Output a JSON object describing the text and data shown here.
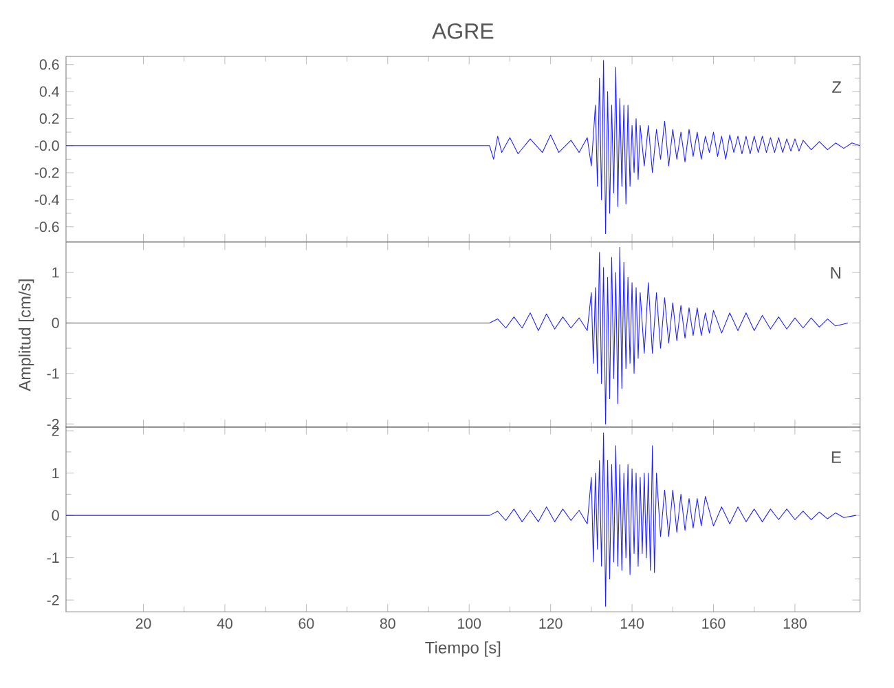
{
  "chart_data": [
    {
      "type": "line",
      "title": "AGRE",
      "annotations": [
        "Z"
      ],
      "tick_labels": "y",
      "grid": false,
      "xlim": [
        1,
        196
      ],
      "ylim": [
        -0.71,
        0.66
      ],
      "yticks": [
        {
          "value": -0.6,
          "label": "-0.6"
        },
        {
          "value": -0.4,
          "label": "-0.4"
        },
        {
          "value": -0.2,
          "label": "-0.2"
        },
        {
          "value": 0,
          "label": "-0.0"
        },
        {
          "value": 0.2,
          "label": "0.2"
        },
        {
          "value": 0.4,
          "label": "0.4"
        },
        {
          "value": 0.6,
          "label": "0.6"
        }
      ],
      "xticks": [
        20,
        40,
        60,
        80,
        100,
        120,
        140,
        160,
        180
      ],
      "series": [
        {
          "color": "#2020ff",
          "x": [
            1,
            60,
            105,
            106,
            107,
            108,
            110,
            112,
            115,
            118,
            120,
            122,
            125,
            127,
            129,
            130,
            131,
            131.5,
            132,
            132.5,
            133,
            133.5,
            134,
            134.5,
            135,
            135.5,
            136,
            136.5,
            137,
            137.5,
            138,
            138.5,
            139,
            139.5,
            140,
            140.5,
            141,
            141.5,
            142,
            143,
            144,
            145,
            146,
            147,
            148,
            149,
            150,
            151,
            152,
            153,
            154,
            155,
            156,
            157,
            158,
            159,
            160,
            161,
            162,
            163,
            164,
            165,
            166,
            167,
            168,
            169,
            170,
            171,
            172,
            173,
            174,
            175,
            176,
            177,
            178,
            179,
            180,
            181,
            182,
            184,
            186,
            188,
            190,
            192,
            194,
            196
          ],
          "values": [
            0,
            0,
            0,
            -0.1,
            0.07,
            -0.05,
            0.06,
            -0.06,
            0.05,
            -0.05,
            0.08,
            -0.05,
            0.04,
            -0.05,
            0.06,
            -0.15,
            0.3,
            -0.3,
            0.5,
            -0.4,
            0.63,
            -0.65,
            0.4,
            -0.5,
            0.3,
            -0.35,
            0.58,
            -0.45,
            0.35,
            -0.3,
            0.3,
            -0.43,
            0.3,
            -0.3,
            0.15,
            -0.2,
            0.2,
            -0.25,
            0.15,
            -0.15,
            0.15,
            -0.2,
            0.12,
            -0.1,
            0.18,
            -0.15,
            0.12,
            -0.1,
            0.1,
            -0.12,
            0.12,
            -0.08,
            0.1,
            -0.1,
            0.07,
            -0.05,
            0.1,
            -0.08,
            0.07,
            -0.1,
            0.08,
            -0.05,
            0.07,
            -0.06,
            0.07,
            -0.06,
            0.07,
            -0.05,
            0.07,
            -0.05,
            0.06,
            -0.05,
            0.06,
            -0.05,
            0.05,
            -0.04,
            0.05,
            -0.04,
            0.04,
            -0.03,
            0.03,
            -0.03,
            0.02,
            -0.02,
            0.02,
            0
          ]
        }
      ]
    },
    {
      "type": "line",
      "ylabel": "Amplitud [cm/s]",
      "annotations": [
        "N"
      ],
      "tick_labels": "y",
      "grid": false,
      "xlim": [
        1,
        196
      ],
      "ylim": [
        -2.07,
        1.6
      ],
      "yticks": [
        -2,
        -1,
        0,
        1
      ],
      "xticks": [
        20,
        40,
        60,
        80,
        100,
        120,
        140,
        160,
        180
      ],
      "series": [
        {
          "color": "#2020ff",
          "x": [
            1,
            60,
            105,
            107,
            109,
            111,
            113,
            115,
            117,
            119,
            121,
            123,
            125,
            127,
            129,
            130,
            130.5,
            131,
            131.5,
            132,
            132.5,
            133,
            133.5,
            134,
            134.5,
            135,
            135.5,
            136,
            136.5,
            137,
            137.5,
            138,
            138.5,
            139,
            139.5,
            140,
            140.5,
            141,
            141.5,
            142,
            143,
            144,
            145,
            146,
            147,
            148,
            149,
            150,
            151,
            152,
            153,
            154,
            155,
            156,
            157,
            158,
            159,
            160,
            162,
            164,
            166,
            168,
            170,
            172,
            174,
            176,
            178,
            180,
            182,
            184,
            186,
            188,
            190,
            193
          ],
          "values": [
            0,
            0,
            0,
            0.08,
            -0.1,
            0.12,
            -0.1,
            0.2,
            -0.15,
            0.18,
            -0.12,
            0.12,
            -0.1,
            0.1,
            -0.15,
            0.6,
            -0.8,
            0.7,
            -1.0,
            1.4,
            -1.2,
            1.1,
            -2.0,
            0.9,
            -1.5,
            1.3,
            -1.1,
            1.0,
            -1.6,
            1.5,
            -1.3,
            1.2,
            -0.9,
            0.9,
            -0.8,
            0.8,
            -1.0,
            0.7,
            -0.7,
            0.6,
            -0.6,
            0.8,
            -0.6,
            0.6,
            -0.5,
            0.5,
            -0.4,
            0.4,
            -0.35,
            0.35,
            -0.3,
            0.3,
            -0.25,
            0.3,
            -0.25,
            0.2,
            -0.2,
            0.25,
            -0.2,
            0.2,
            -0.15,
            0.2,
            -0.15,
            0.15,
            -0.12,
            0.12,
            -0.12,
            0.1,
            -0.1,
            0.1,
            -0.08,
            0.08,
            -0.06,
            0
          ]
        }
      ]
    },
    {
      "type": "line",
      "xlabel": "Tiempo [s]",
      "annotations": [
        "E"
      ],
      "grid": false,
      "xlim": [
        1,
        196
      ],
      "ylim": [
        -2.28,
        2.1
      ],
      "yticks": [
        -2,
        -1,
        0,
        1,
        2
      ],
      "xticks": [
        20,
        40,
        60,
        80,
        100,
        120,
        140,
        160,
        180
      ],
      "series": [
        {
          "color": "#2020ff",
          "x": [
            1,
            60,
            105,
            107,
            109,
            111,
            113,
            115,
            117,
            119,
            121,
            123,
            125,
            127,
            129,
            130,
            130.5,
            131,
            131.5,
            132,
            132.5,
            133,
            133.5,
            134,
            134.5,
            135,
            135.5,
            136,
            136.5,
            137,
            137.5,
            138,
            138.5,
            139,
            139.5,
            140,
            140.5,
            141,
            141.5,
            142,
            142.5,
            143,
            143.5,
            144,
            144.5,
            145,
            145.5,
            146,
            147,
            148,
            149,
            150,
            151,
            152,
            153,
            154,
            155,
            156,
            157,
            158,
            160,
            162,
            164,
            166,
            168,
            170,
            172,
            174,
            176,
            178,
            180,
            182,
            184,
            186,
            188,
            190,
            192,
            195
          ],
          "values": [
            0,
            0,
            0,
            0.1,
            -0.12,
            0.15,
            -0.15,
            0.12,
            -0.15,
            0.2,
            -0.15,
            0.15,
            -0.12,
            0.12,
            -0.2,
            0.9,
            -1.1,
            1.0,
            -0.8,
            1.3,
            -1.2,
            1.95,
            -2.15,
            1.3,
            -1.5,
            1.2,
            -1.1,
            1.65,
            -1.2,
            1.2,
            -1.3,
            1.0,
            -1.0,
            1.2,
            -1.4,
            1.1,
            -0.9,
            1.0,
            -1.2,
            0.9,
            -0.9,
            1.0,
            -1.0,
            1.0,
            -1.3,
            1.65,
            -1.35,
            1.0,
            -0.5,
            0.6,
            -0.5,
            0.6,
            -0.4,
            0.5,
            -0.35,
            0.4,
            -0.3,
            0.4,
            -0.25,
            0.45,
            -0.25,
            0.2,
            -0.2,
            0.2,
            -0.15,
            0.15,
            -0.15,
            0.15,
            -0.1,
            0.15,
            -0.1,
            0.1,
            -0.1,
            0.08,
            -0.08,
            0.06,
            -0.05,
            0
          ]
        }
      ]
    }
  ]
}
